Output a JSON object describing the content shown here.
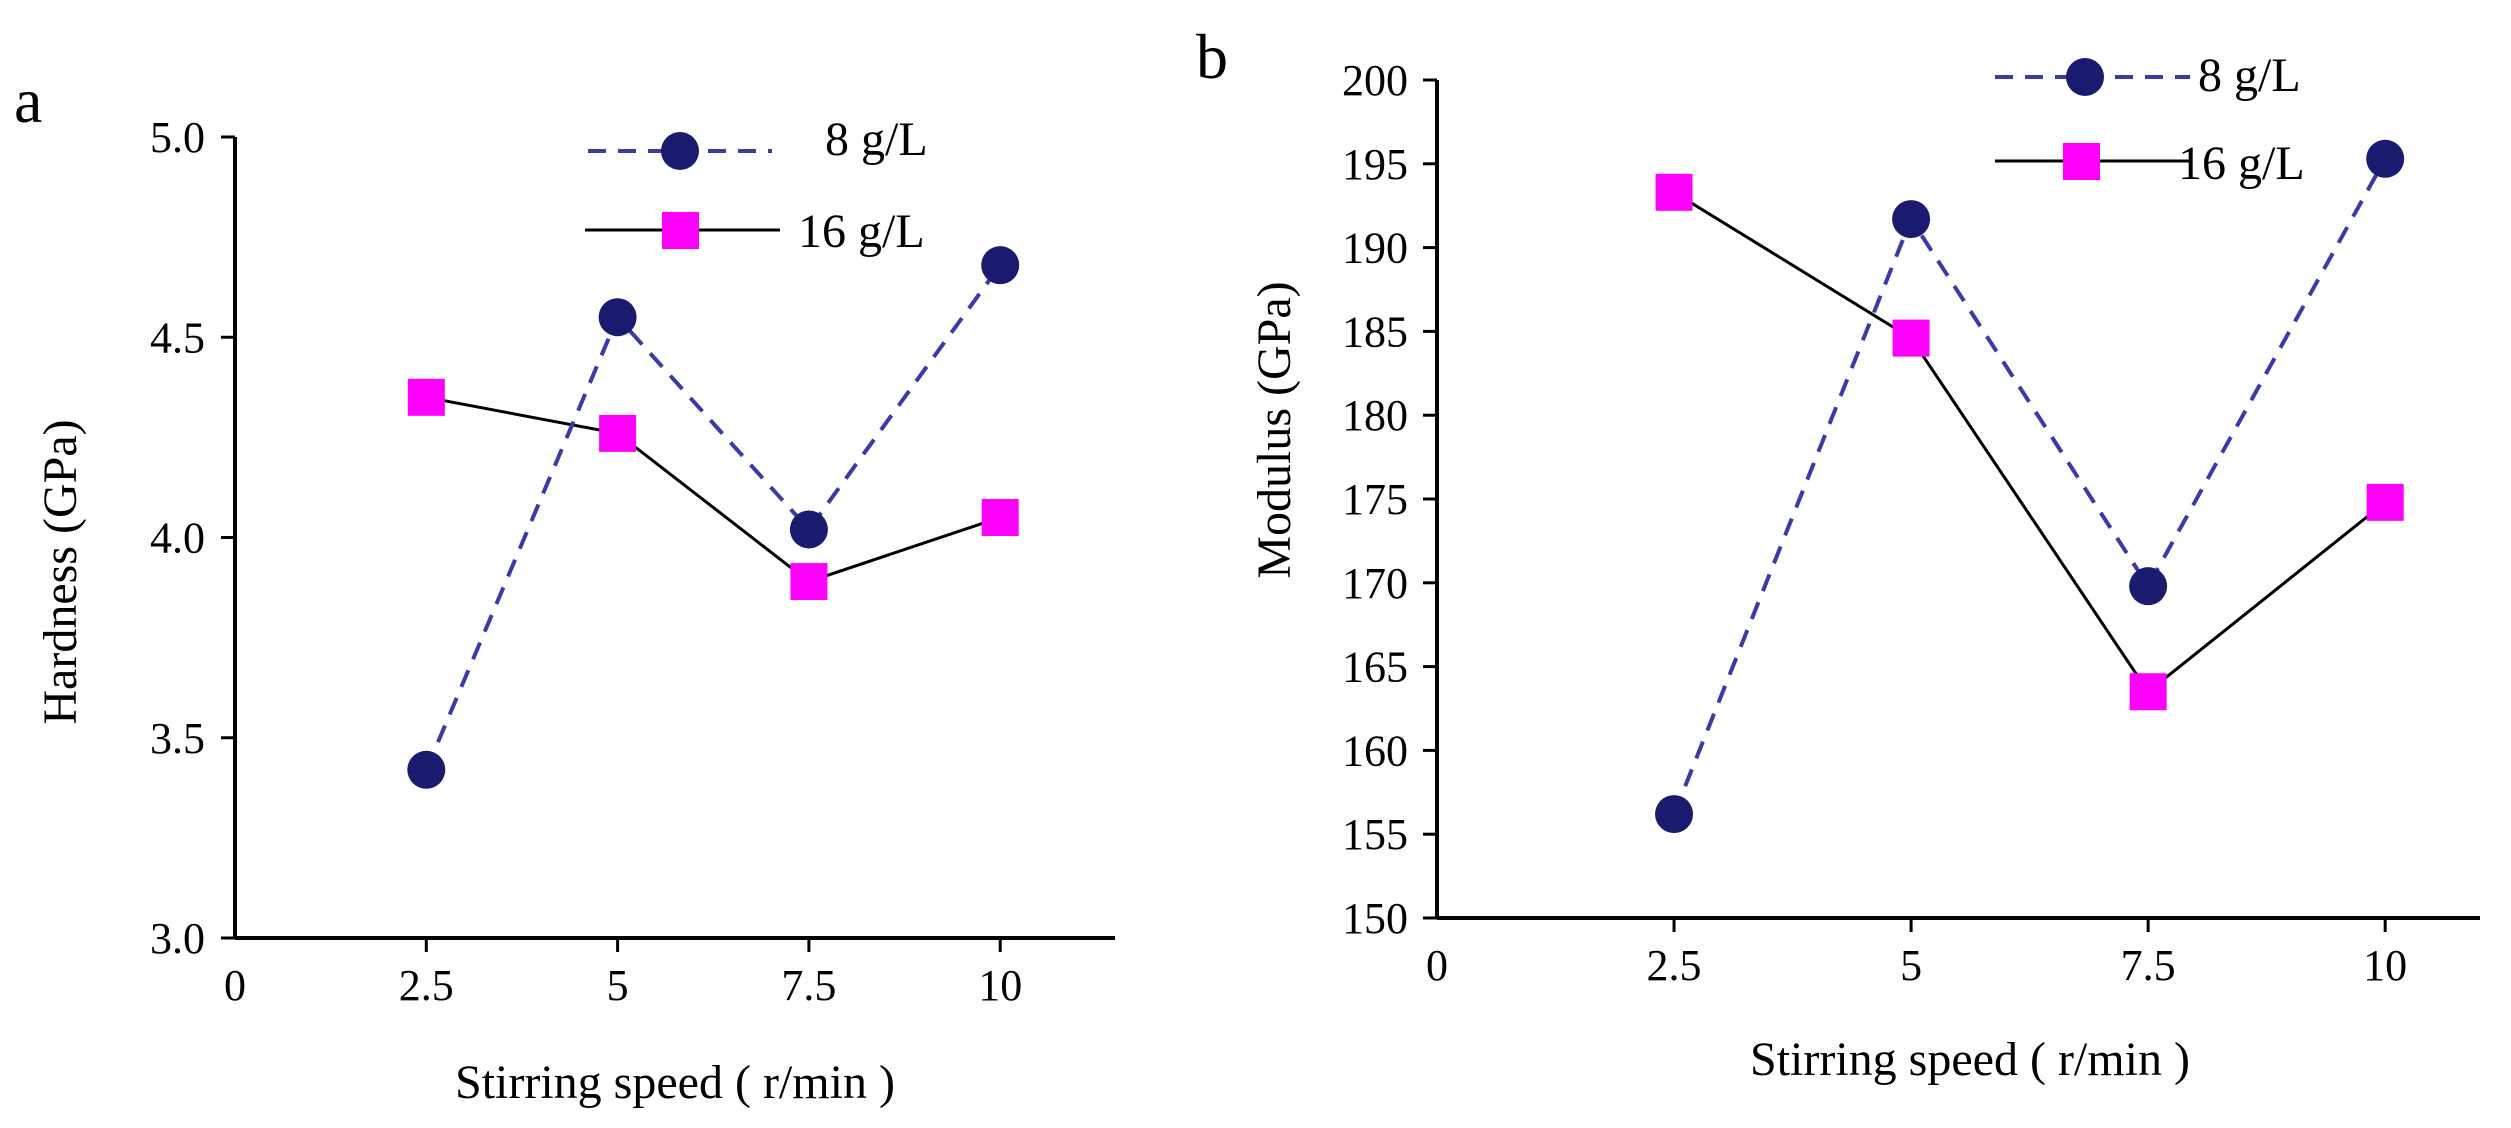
{
  "chart_data": [
    {
      "panel": "a",
      "type": "line",
      "xlabel": "Stirring speed ( r/min )",
      "ylabel": "Hardness (GPa)",
      "xlim": [
        0,
        11.5
      ],
      "ylim": [
        3.0,
        5.0
      ],
      "x_ticks": [
        0,
        2.5,
        5,
        7.5,
        10
      ],
      "x_tick_labels": [
        "0",
        "2.5",
        "5",
        "7.5",
        "10"
      ],
      "y_ticks": [
        3.0,
        3.5,
        4.0,
        4.5,
        5.0
      ],
      "y_tick_labels": [
        "3.0",
        "3.5",
        "4.0",
        "4.5",
        "5.0"
      ],
      "series": [
        {
          "name": "8 g/L",
          "x": [
            2.5,
            5,
            7.5,
            10
          ],
          "values": [
            3.42,
            4.55,
            4.02,
            4.68
          ],
          "marker": "circle",
          "line": "dashed",
          "color": "#1a1a6e",
          "line_color": "#3a3aa8"
        },
        {
          "name": "16 g/L",
          "x": [
            2.5,
            5,
            7.5,
            10
          ],
          "values": [
            4.35,
            4.26,
            3.89,
            4.05
          ],
          "marker": "square",
          "line": "solid",
          "color": "#ff00ff",
          "line_color": "#000000"
        }
      ]
    },
    {
      "panel": "b",
      "type": "line",
      "xlabel": "Stirring speed ( r/min )",
      "ylabel": "Modulus (GPa)",
      "xlim": [
        0,
        11
      ],
      "ylim": [
        150,
        200
      ],
      "x_ticks": [
        0,
        2.5,
        5,
        7.5,
        10
      ],
      "x_tick_labels": [
        "0",
        "2.5",
        "5",
        "7.5",
        "10"
      ],
      "y_ticks": [
        150,
        155,
        160,
        165,
        170,
        175,
        180,
        185,
        190,
        195,
        200
      ],
      "y_tick_labels": [
        "150",
        "155",
        "160",
        "165",
        "170",
        "175",
        "180",
        "185",
        "190",
        "195",
        "200"
      ],
      "series": [
        {
          "name": "8 g/L",
          "x": [
            2.5,
            5,
            7.5,
            10
          ],
          "values": [
            156.2,
            191.7,
            169.8,
            195.3
          ],
          "marker": "circle",
          "line": "dashed",
          "color": "#1a1a6e",
          "line_color": "#3a3aa8"
        },
        {
          "name": "16 g/L",
          "x": [
            2.5,
            5,
            7.5,
            10
          ],
          "values": [
            193.3,
            184.6,
            163.5,
            174.8
          ],
          "marker": "square",
          "line": "solid",
          "color": "#ff00ff",
          "line_color": "#000000"
        }
      ]
    }
  ]
}
